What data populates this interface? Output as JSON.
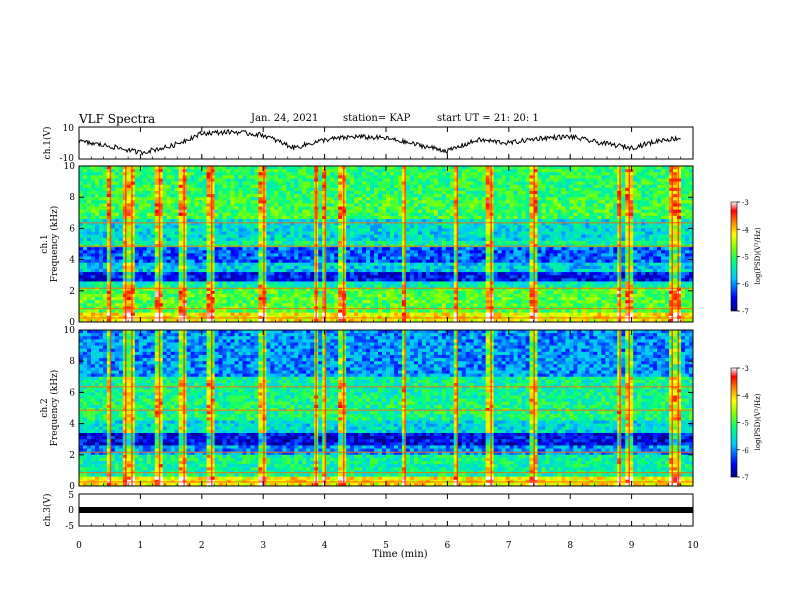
{
  "header": {
    "title": "VLF Spectra",
    "date": "Jan. 24, 2021",
    "station": "station= KAP",
    "start": "start UT =  21: 20: 1"
  },
  "colorbar": {
    "label": "log(PSD)(V²/Hz)",
    "ticks": [
      "-3",
      "-4",
      "-5",
      "-6",
      "-7"
    ],
    "range": [
      -7,
      -3
    ],
    "colors": [
      "#000080",
      "#0000ff",
      "#00c8ff",
      "#00ff80",
      "#80ff00",
      "#ffff00",
      "#ff8000",
      "#ff0000",
      "#ffffff"
    ]
  },
  "chart_data": [
    {
      "type": "line",
      "panel": "ch1-waveform",
      "ylabel": "ch.1(V)",
      "ylim": [
        -10,
        10
      ],
      "y_ticks": [
        "10",
        "-10"
      ],
      "xlim": [
        0,
        10
      ],
      "description_series": [
        {
          "x": [
            0,
            0.5,
            1.0,
            1.5,
            2.0,
            2.5,
            3.0,
            3.5,
            4.0,
            4.5,
            5.0,
            5.5,
            6.0,
            6.5,
            7.0,
            7.5,
            8.0,
            8.5,
            9.0,
            9.5,
            9.8
          ],
          "y": [
            1,
            -2,
            -6,
            -2,
            6,
            7,
            5,
            -3,
            2,
            4,
            3,
            -1,
            -5,
            2,
            0,
            3,
            4,
            0,
            -3,
            2,
            3
          ]
        }
      ]
    },
    {
      "type": "heatmap",
      "panel": "ch1-spectrogram",
      "ylabel": "ch.1\nFrequency (kHz)",
      "ylim": [
        0,
        10
      ],
      "y_ticks": [
        "0",
        "2",
        "4",
        "6",
        "8",
        "10"
      ],
      "xlim": [
        0,
        10
      ],
      "value_range": [
        -7,
        -3
      ],
      "bands_khz": [
        {
          "from": 0,
          "to": 0.6,
          "level": -4.2
        },
        {
          "from": 0.6,
          "to": 2.2,
          "level": -4.9
        },
        {
          "from": 2.2,
          "to": 2.6,
          "level": -5.4
        },
        {
          "from": 2.6,
          "to": 3.2,
          "level": -6.5
        },
        {
          "from": 3.2,
          "to": 3.8,
          "level": -5.7
        },
        {
          "from": 3.8,
          "to": 4.8,
          "level": -6.2
        },
        {
          "from": 4.8,
          "to": 5.2,
          "level": -5.3
        },
        {
          "from": 5.2,
          "to": 6.6,
          "level": -5.6
        },
        {
          "from": 6.6,
          "to": 8.0,
          "level": -5.0
        },
        {
          "from": 8.0,
          "to": 10.0,
          "level": -5.1
        }
      ]
    },
    {
      "type": "heatmap",
      "panel": "ch2-spectrogram",
      "ylabel": "ch.2\nFrequency (kHz)",
      "ylim": [
        0,
        10
      ],
      "y_ticks": [
        "0",
        "2",
        "4",
        "6",
        "8",
        "10"
      ],
      "xlim": [
        0,
        10
      ],
      "value_range": [
        -7,
        -3
      ],
      "bands_khz": [
        {
          "from": 0,
          "to": 0.6,
          "level": -4.2
        },
        {
          "from": 0.6,
          "to": 2.0,
          "level": -5.3
        },
        {
          "from": 2.0,
          "to": 2.6,
          "level": -6.0
        },
        {
          "from": 2.6,
          "to": 3.4,
          "level": -6.6
        },
        {
          "from": 3.4,
          "to": 4.2,
          "level": -5.6
        },
        {
          "from": 4.2,
          "to": 5.6,
          "level": -5.2
        },
        {
          "from": 5.6,
          "to": 7.0,
          "level": -5.3
        },
        {
          "from": 7.0,
          "to": 10.0,
          "level": -6.0
        }
      ]
    },
    {
      "type": "line",
      "panel": "ch3-waveform",
      "ylabel": "ch.3(V)",
      "ylim": [
        -5,
        5
      ],
      "y_ticks": [
        "5",
        "0",
        "-5"
      ],
      "xlim": [
        0,
        10
      ],
      "xlabel": "Time (min)",
      "x_ticks": [
        "0",
        "1",
        "2",
        "3",
        "4",
        "5",
        "6",
        "7",
        "8",
        "9",
        "10"
      ],
      "constant_level": 0
    }
  ],
  "bursts_min": [
    0.5,
    0.75,
    0.85,
    1.3,
    1.7,
    2.15,
    3.0,
    3.85,
    4.0,
    4.3,
    5.3,
    6.15,
    6.7,
    7.4,
    8.8,
    8.95,
    9.65,
    9.75
  ]
}
